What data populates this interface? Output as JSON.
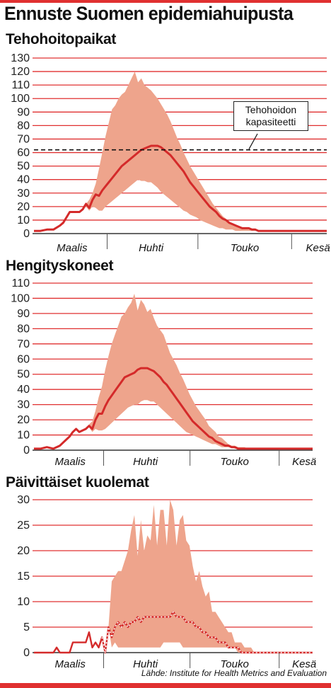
{
  "title": "Ennuste Suomen epidemiahuipusta",
  "source": "Lähde: Institute for Health Metrics and Evaluation",
  "colors": {
    "accent": "#e03030",
    "band": "#eea48c",
    "line": "#d42a2a"
  },
  "chart_data": [
    {
      "type": "area",
      "title": "Tehohoitopaikat",
      "ylim": [
        0,
        130
      ],
      "yticks": [
        "0",
        "10",
        "20",
        "30",
        "40",
        "50",
        "60",
        "70",
        "80",
        "90",
        "100",
        "110",
        "120",
        "130"
      ],
      "xticks": [
        "Maalis",
        "Huhti",
        "Touko",
        "Kesä"
      ],
      "capacity": {
        "value": 62,
        "label_line1": "Tehohoidon",
        "label_line2": "kapasiteetti"
      },
      "x": [
        0,
        2,
        4,
        6,
        8,
        9,
        10,
        11,
        12,
        13,
        14,
        15,
        16,
        17,
        18,
        19,
        20,
        21,
        22,
        23,
        24,
        25,
        26,
        27,
        28,
        29,
        30,
        31,
        32,
        33,
        34,
        35,
        36,
        37,
        38,
        39,
        40,
        41,
        42,
        43,
        44,
        45,
        46,
        47,
        48,
        49,
        50,
        51,
        52,
        53,
        54,
        55,
        56,
        57,
        58,
        59,
        60,
        61,
        62,
        63,
        64,
        65,
        66,
        67,
        68,
        69,
        70,
        71,
        72,
        73,
        74,
        75,
        76,
        77,
        78,
        79,
        80,
        81,
        82,
        83,
        84,
        85,
        86,
        87,
        88,
        89,
        90
      ],
      "values": [
        2,
        2,
        3,
        3,
        6,
        8,
        12,
        16,
        16,
        16,
        16,
        18,
        22,
        19,
        25,
        29,
        28,
        32,
        35,
        38,
        41,
        44,
        47,
        50,
        52,
        54,
        56,
        58,
        60,
        62,
        63,
        64,
        65,
        65,
        65,
        64,
        62,
        60,
        58,
        55,
        52,
        49,
        46,
        42,
        38,
        35,
        32,
        29,
        26,
        23,
        20,
        18,
        16,
        13,
        11,
        10,
        8,
        7,
        6,
        5,
        4,
        4,
        4,
        3,
        3,
        2,
        2,
        2,
        2,
        2,
        2,
        2,
        2,
        2,
        2,
        2,
        2,
        2,
        2,
        2,
        2,
        2,
        2,
        2,
        2,
        2,
        2
      ],
      "upper": [
        2,
        2,
        3,
        3,
        6,
        8,
        12,
        16,
        16,
        16,
        16,
        18,
        22,
        25,
        30,
        37,
        48,
        60,
        72,
        82,
        92,
        95,
        100,
        103,
        105,
        110,
        115,
        120,
        112,
        115,
        110,
        108,
        106,
        103,
        100,
        96,
        92,
        88,
        83,
        77,
        71,
        66,
        60,
        55,
        50,
        46,
        42,
        38,
        34,
        30,
        26,
        22,
        19,
        16,
        13,
        11,
        9,
        7,
        6,
        5,
        4,
        4,
        3,
        3,
        3,
        2,
        2,
        2,
        2,
        2,
        2,
        2,
        2,
        2,
        2,
        2,
        2,
        2,
        2,
        2,
        2,
        2,
        2,
        2,
        2,
        2,
        2
      ],
      "lower": [
        2,
        2,
        3,
        3,
        6,
        8,
        12,
        16,
        16,
        16,
        16,
        18,
        20,
        17,
        20,
        19,
        17,
        17,
        20,
        22,
        24,
        26,
        28,
        30,
        32,
        34,
        36,
        38,
        40,
        39,
        39,
        38,
        38,
        36,
        34,
        31,
        29,
        27,
        25,
        23,
        21,
        19,
        17,
        16,
        14,
        13,
        12,
        10,
        9,
        8,
        7,
        6,
        5,
        4,
        4,
        3,
        3,
        3,
        2,
        2,
        2,
        2,
        2,
        2,
        2,
        2,
        2,
        2,
        2,
        2,
        2,
        2,
        2,
        2,
        2,
        2,
        2,
        2,
        2,
        2,
        2,
        2,
        2,
        2,
        2,
        2,
        2
      ]
    },
    {
      "type": "area",
      "title": "Hengityskoneet",
      "ylim": [
        0,
        110
      ],
      "yticks": [
        "0",
        "10",
        "20",
        "30",
        "40",
        "50",
        "60",
        "70",
        "80",
        "90",
        "100",
        "110"
      ],
      "xticks": [
        "Maalis",
        "Huhti",
        "Touko",
        "Kesä"
      ],
      "x": [
        0,
        2,
        4,
        6,
        8,
        9,
        10,
        11,
        12,
        13,
        14,
        15,
        16,
        17,
        18,
        19,
        20,
        21,
        22,
        23,
        24,
        25,
        26,
        27,
        28,
        29,
        30,
        31,
        32,
        33,
        34,
        35,
        36,
        37,
        38,
        39,
        40,
        41,
        42,
        43,
        44,
        45,
        46,
        47,
        48,
        49,
        50,
        51,
        52,
        53,
        54,
        55,
        56,
        57,
        58,
        59,
        60,
        61,
        62,
        63,
        64,
        65,
        66,
        67,
        68,
        69,
        70,
        71,
        72,
        73,
        74,
        75,
        76,
        77,
        78,
        79,
        80,
        81,
        82,
        83,
        84,
        85,
        86
      ],
      "values": [
        1,
        1,
        2,
        1,
        3,
        5,
        7,
        9,
        12,
        14,
        12,
        13,
        14,
        16,
        14,
        20,
        24,
        24,
        29,
        33,
        36,
        39,
        42,
        45,
        48,
        49,
        50,
        51,
        53,
        54,
        54,
        54,
        53,
        52,
        50,
        48,
        45,
        43,
        40,
        37,
        34,
        31,
        28,
        25,
        22,
        19,
        17,
        15,
        13,
        11,
        9,
        8,
        6,
        5,
        4,
        3,
        3,
        2,
        2,
        1,
        1,
        1,
        1,
        1,
        1,
        1,
        1,
        1,
        1,
        1,
        1,
        1,
        1,
        1,
        1,
        1,
        1,
        1,
        1,
        1,
        1,
        1,
        1
      ],
      "upper": [
        1,
        1,
        2,
        1,
        3,
        5,
        7,
        9,
        12,
        14,
        12,
        13,
        14,
        17,
        19,
        26,
        35,
        42,
        53,
        62,
        70,
        76,
        82,
        88,
        90,
        94,
        97,
        103,
        92,
        99,
        96,
        91,
        93,
        87,
        82,
        79,
        76,
        70,
        64,
        60,
        56,
        51,
        47,
        42,
        37,
        33,
        29,
        26,
        23,
        20,
        16,
        14,
        12,
        9,
        8,
        6,
        4,
        3,
        3,
        2,
        2,
        2,
        1,
        1,
        1,
        1,
        1,
        1,
        1,
        1,
        1,
        1,
        1,
        1,
        1,
        1,
        1,
        1,
        1,
        1,
        1,
        1,
        1
      ],
      "lower": [
        1,
        1,
        2,
        1,
        3,
        5,
        7,
        9,
        12,
        14,
        12,
        13,
        14,
        15,
        12,
        14,
        13,
        13,
        14,
        16,
        18,
        20,
        22,
        24,
        26,
        28,
        29,
        30,
        30,
        32,
        33,
        33,
        32,
        32,
        30,
        28,
        26,
        24,
        22,
        20,
        18,
        16,
        14,
        12,
        11,
        10,
        9,
        8,
        7,
        6,
        5,
        4,
        4,
        3,
        2,
        2,
        2,
        2,
        1,
        1,
        1,
        1,
        1,
        1,
        1,
        1,
        1,
        1,
        1,
        1,
        1,
        1,
        1,
        1,
        1,
        1,
        1,
        1,
        1,
        1,
        1,
        1,
        1
      ]
    },
    {
      "type": "area",
      "title": "Päivittäiset kuolemat",
      "ylim": [
        0,
        30
      ],
      "yticks": [
        "0",
        "5",
        "10",
        "15",
        "20",
        "25",
        "30"
      ],
      "xticks": [
        "Maalis",
        "Huhti",
        "Touko",
        "Kesä"
      ],
      "x": [
        0,
        2,
        4,
        6,
        7,
        8,
        9,
        10,
        11,
        12,
        13,
        14,
        15,
        16,
        17,
        18,
        19,
        20,
        21,
        22,
        23,
        24,
        25,
        26,
        27,
        28,
        29,
        30,
        31,
        32,
        33,
        34,
        35,
        36,
        37,
        38,
        39,
        40,
        41,
        42,
        43,
        44,
        45,
        46,
        47,
        48,
        49,
        50,
        51,
        52,
        53,
        54,
        55,
        56,
        57,
        58,
        59,
        60,
        61,
        62,
        63,
        64,
        65,
        66,
        67,
        68,
        69,
        70,
        71,
        72,
        73,
        74,
        75,
        76,
        77,
        78,
        79,
        80,
        81,
        82,
        83,
        84,
        85,
        86
      ],
      "values": [
        0,
        0,
        0,
        0,
        1,
        0,
        0,
        0,
        0,
        2,
        2,
        2,
        2,
        2,
        4,
        1,
        2,
        1,
        3,
        0,
        5,
        3,
        5,
        6,
        5,
        6,
        5,
        6,
        6,
        7,
        6,
        7,
        7,
        7,
        7,
        7,
        7,
        7,
        7,
        7,
        8,
        7,
        7,
        7,
        6,
        6,
        6,
        5,
        5,
        4,
        4,
        3,
        3,
        3,
        2,
        2,
        2,
        1,
        1,
        1,
        1,
        0,
        0,
        0,
        0,
        0,
        0,
        0,
        0,
        0,
        0,
        0,
        0,
        0,
        0,
        0,
        0,
        0,
        0,
        0,
        0,
        0,
        0,
        0
      ],
      "upper": [
        0,
        0,
        0,
        0,
        1,
        0,
        0,
        0,
        0,
        2,
        2,
        2,
        2,
        2,
        4,
        1,
        2,
        1,
        3,
        0,
        5,
        14,
        15,
        16,
        16,
        18,
        20,
        24,
        27,
        19,
        26,
        20,
        23,
        22,
        29,
        21,
        28,
        28,
        21,
        30,
        28,
        21,
        26,
        27,
        22,
        21,
        17,
        14,
        16,
        13,
        11,
        12,
        8,
        8,
        7,
        6,
        5,
        4,
        4,
        2,
        2,
        2,
        1,
        1,
        1,
        0,
        0,
        0,
        0,
        0,
        0,
        0,
        0,
        0,
        0,
        0,
        0,
        0,
        0,
        0,
        0,
        0,
        0,
        0
      ],
      "lower": [
        0,
        0,
        0,
        0,
        1,
        0,
        0,
        0,
        0,
        2,
        2,
        2,
        2,
        2,
        4,
        1,
        2,
        1,
        3,
        0,
        5,
        1,
        2,
        1,
        1,
        1,
        1,
        1,
        1,
        1,
        1,
        1,
        1,
        1,
        1,
        1,
        1,
        2,
        2,
        2,
        2,
        2,
        2,
        1,
        1,
        1,
        1,
        1,
        1,
        1,
        1,
        1,
        1,
        1,
        1,
        1,
        1,
        1,
        1,
        1,
        0,
        0,
        0,
        0,
        0,
        0,
        0,
        0,
        0,
        0,
        0,
        0,
        0,
        0,
        0,
        0,
        0,
        0,
        0,
        0,
        0,
        0,
        0,
        0
      ]
    }
  ]
}
